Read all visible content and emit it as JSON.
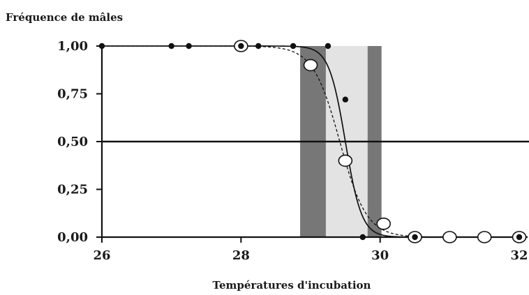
{
  "chart_data": {
    "type": "scatter",
    "title": "",
    "ylabel": "Fréquence de mâles",
    "xlabel": "Températures d'incubation",
    "xlim": [
      26,
      32.1
    ],
    "ylim": [
      0,
      1
    ],
    "x_ticks": [
      {
        "value": 26,
        "label": "26"
      },
      {
        "value": 28,
        "label": "28"
      },
      {
        "value": 30,
        "label": "30"
      },
      {
        "value": 32,
        "label": "32"
      }
    ],
    "y_ticks": [
      {
        "value": 0,
        "label": "0,00"
      },
      {
        "value": 0.25,
        "label": "0,25"
      },
      {
        "value": 0.5,
        "label": "0,50"
      },
      {
        "value": 0.75,
        "label": "0,75"
      },
      {
        "value": 1,
        "label": "1,00"
      }
    ],
    "reference_line": {
      "y": 0.5
    },
    "shaded_bands": [
      {
        "from": 28.85,
        "to": 29.22,
        "shade": "dark"
      },
      {
        "from": 29.22,
        "to": 29.82,
        "shade": "light"
      },
      {
        "from": 29.82,
        "to": 30.02,
        "shade": "dark"
      }
    ],
    "series": [
      {
        "marker": "filled",
        "points": [
          [
            26.0,
            1.0
          ],
          [
            27.0,
            1.0
          ],
          [
            27.25,
            1.0
          ],
          [
            28.0,
            1.0
          ],
          [
            28.25,
            1.0
          ],
          [
            28.75,
            1.0
          ],
          [
            29.25,
            1.0
          ],
          [
            29.5,
            0.72
          ],
          [
            29.75,
            0.0
          ],
          [
            30.5,
            0.0
          ],
          [
            32.0,
            0.0
          ]
        ]
      },
      {
        "marker": "open",
        "points": [
          [
            28.0,
            1.0
          ],
          [
            29.0,
            0.9
          ],
          [
            29.5,
            0.4
          ],
          [
            30.05,
            0.07
          ],
          [
            30.5,
            0.0
          ],
          [
            31.0,
            0.0
          ],
          [
            31.5,
            0.0
          ],
          [
            32.0,
            0.0
          ]
        ]
      }
    ],
    "curves": [
      {
        "style": "solid",
        "pivot": 29.5,
        "slope": 8.5
      },
      {
        "style": "dashed",
        "pivot": 29.42,
        "slope": 5.2
      }
    ],
    "colors": {
      "dark_band": "#777777",
      "light_band": "#e3e3e3",
      "axis": "#111111",
      "marker_fill": "#111111",
      "open_fill": "#ffffff"
    }
  }
}
